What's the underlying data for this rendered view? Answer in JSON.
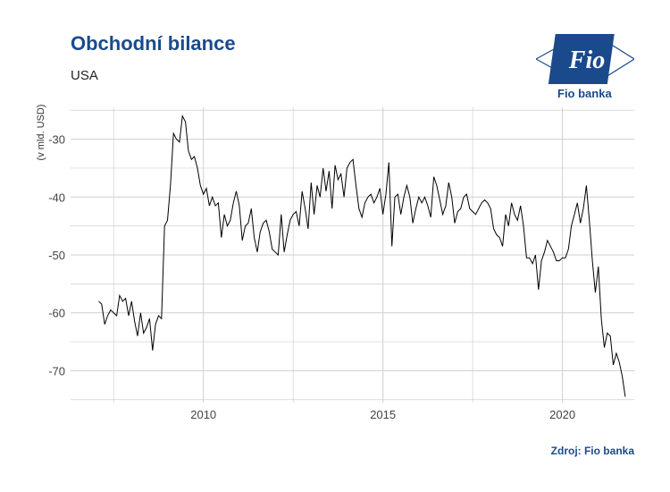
{
  "header": {
    "title": "Obchodní bilance",
    "subtitle": "USA"
  },
  "logo": {
    "mark_text": "Fio",
    "caption": "Fio banka",
    "color": "#1a4a8c"
  },
  "footer": {
    "source": "Zdroj: Fio banka"
  },
  "chart_data": {
    "type": "line",
    "title": "Obchodní bilance",
    "subtitle": "USA",
    "xlabel": "",
    "ylabel": "(v mld. USD)",
    "x_ticks": [
      2010,
      2015,
      2020
    ],
    "y_ticks": [
      -30,
      -40,
      -50,
      -60,
      -70
    ],
    "xlim": [
      2006.3,
      2022.0
    ],
    "ylim": [
      -75.5,
      -24.5
    ],
    "grid": true,
    "line_color": "#000000",
    "series": [
      {
        "x_start": 2007.083,
        "x_step": 0.08333,
        "values": [
          -58,
          -58.5,
          -62,
          -60.5,
          -59.5,
          -60,
          -60.5,
          -57,
          -58,
          -57.5,
          -60.5,
          -58,
          -61.5,
          -64,
          -60,
          -63.5,
          -62.5,
          -61,
          -66.5,
          -62,
          -60.5,
          -61,
          -45,
          -44,
          -38,
          -29,
          -30,
          -30.5,
          -26,
          -27,
          -32,
          -33.5,
          -33,
          -35,
          -38,
          -39.5,
          -38.5,
          -41.5,
          -40,
          -41.5,
          -41,
          -47,
          -43,
          -45,
          -44,
          -41,
          -39,
          -41.5,
          -47.5,
          -45,
          -44.5,
          -42,
          -47,
          -49.5,
          -46,
          -44.5,
          -44,
          -46,
          -49,
          -49.5,
          -50,
          -43,
          -49.5,
          -46.5,
          -44,
          -43,
          -42.5,
          -45,
          -39,
          -42,
          -45.5,
          -37.5,
          -43,
          -38,
          -40,
          -35,
          -39,
          -35.5,
          -42,
          -34.5,
          -37,
          -36,
          -40,
          -35,
          -34,
          -33.5,
          -38,
          -42,
          -43.5,
          -41,
          -40,
          -39.5,
          -41,
          -40,
          -38.5,
          -43,
          -39.5,
          -34,
          -48.5,
          -40,
          -39.5,
          -43,
          -40,
          -38,
          -40,
          -44.5,
          -42,
          -40,
          -41,
          -40,
          -41.5,
          -43.5,
          -36.5,
          -38,
          -40.5,
          -43,
          -41.5,
          -37.5,
          -40,
          -44.5,
          -42.5,
          -42,
          -40,
          -39.5,
          -42,
          -42.5,
          -43,
          -42,
          -41,
          -40.5,
          -41,
          -42,
          -45.5,
          -46.5,
          -47,
          -48.5,
          -43,
          -45,
          -41,
          -43,
          -44,
          -41.5,
          -45,
          -50.5,
          -50.5,
          -51.5,
          -50,
          -56,
          -51,
          -49.5,
          -47.5,
          -48.5,
          -49.5,
          -51,
          -51,
          -50.5,
          -50.5,
          -49,
          -45,
          -43,
          -41,
          -44.5,
          -42,
          -38,
          -44,
          -51,
          -56.5,
          -52,
          -61,
          -66,
          -63.5,
          -64,
          -69,
          -67,
          -68.5,
          -71,
          -74.5
        ]
      }
    ]
  }
}
